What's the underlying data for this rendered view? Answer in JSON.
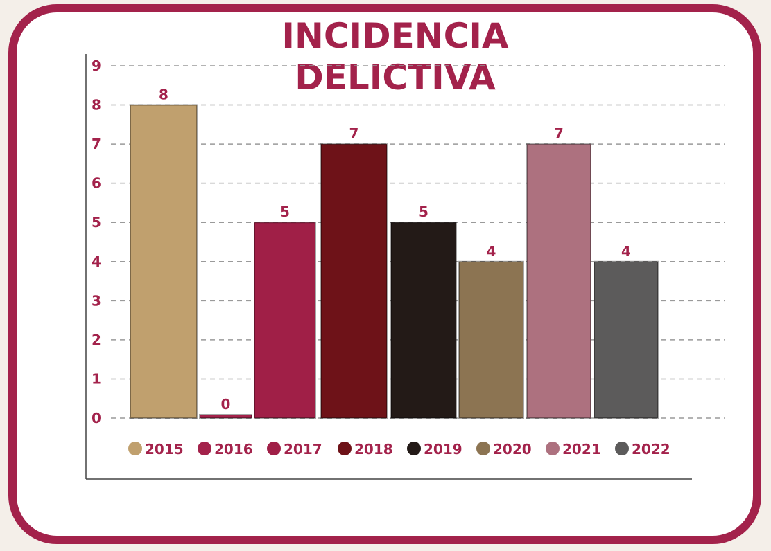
{
  "chart_data": {
    "type": "bar",
    "title": [
      "INCIDENCIA",
      "DELICTIVA"
    ],
    "categories": [
      "2015",
      "2016",
      "2017",
      "2018",
      "2019",
      "2020",
      "2021",
      "2022"
    ],
    "values": [
      8,
      0,
      5,
      7,
      5,
      4,
      7,
      4
    ],
    "colors": [
      "#c0a06e",
      "#a3224b",
      "#a01f47",
      "#6e1218",
      "#231a17",
      "#8c7452",
      "#ad717f",
      "#5c5b5b"
    ],
    "ylim": [
      0,
      9
    ],
    "yticks": [
      "0",
      "1",
      "2",
      "3",
      "4",
      "5",
      "6",
      "7",
      "8",
      "9"
    ],
    "grid": true,
    "legend": "bottom",
    "accent_color": "#a3224b"
  }
}
